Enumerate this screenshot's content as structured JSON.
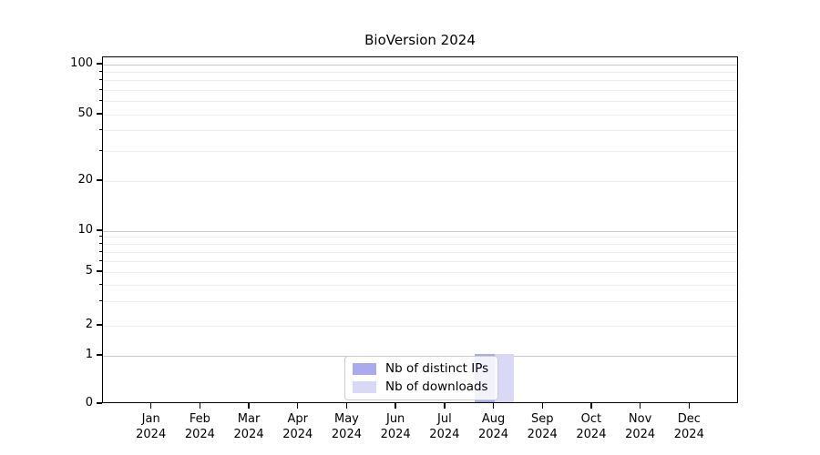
{
  "chart_data": {
    "type": "bar",
    "title": "BioVersion 2024",
    "categories": [
      "Jan 2024",
      "Feb 2024",
      "Mar 2024",
      "Apr 2024",
      "May 2024",
      "Jun 2024",
      "Jul 2024",
      "Aug 2024",
      "Sep 2024",
      "Oct 2024",
      "Nov 2024",
      "Dec 2024"
    ],
    "series": [
      {
        "name": "Nb of distinct IPs",
        "color": "#aaaaef",
        "values": [
          0,
          0,
          0,
          0,
          0,
          0,
          0,
          1,
          0,
          0,
          0,
          0
        ]
      },
      {
        "name": "Nb of downloads",
        "color": "#d9d9f7",
        "values": [
          0,
          0,
          0,
          0,
          0,
          0,
          0,
          1,
          0,
          0,
          0,
          0
        ]
      }
    ],
    "xlabel": "",
    "ylabel": "",
    "y_axis": {
      "scale": "symlog",
      "tick_labels": [
        "0",
        "1",
        "2",
        "5",
        "10",
        "20",
        "50",
        "100"
      ],
      "tick_values": [
        0,
        1,
        2,
        5,
        10,
        20,
        50,
        100
      ],
      "minor_tick_values": [
        3,
        4,
        6,
        7,
        8,
        9,
        30,
        40,
        60,
        70,
        80,
        90
      ],
      "major_grid_values": [
        1,
        10,
        100
      ],
      "ylim": [
        0,
        110
      ]
    },
    "grid": {
      "orientation": "horizontal",
      "major_color": "#c8c8c8",
      "minor_color": "#ececec"
    },
    "legend_position": "lower center inside plot"
  },
  "legend": {
    "items": [
      {
        "label": "Nb of distinct IPs",
        "color": "#aaaaef"
      },
      {
        "label": "Nb of downloads",
        "color": "#d9d9f7"
      }
    ]
  }
}
